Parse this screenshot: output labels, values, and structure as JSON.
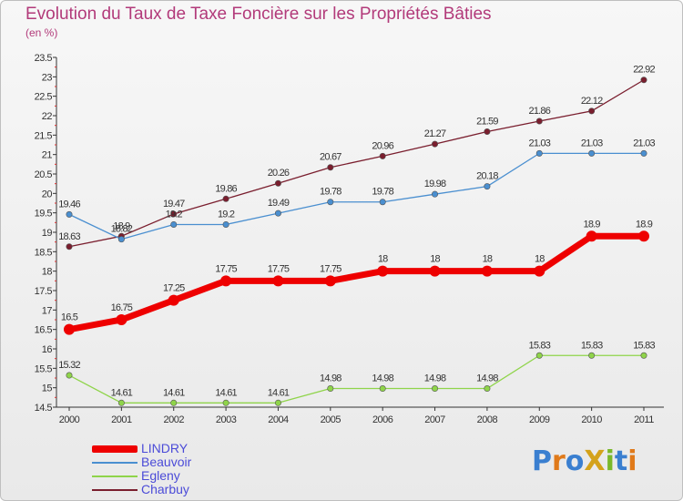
{
  "title": "Evolution du Taux de Taxe Foncière sur les Propriétés Bâties",
  "unit": "(en %)",
  "logo": "ProXiti",
  "chart_data": {
    "type": "line",
    "x": [
      "2000",
      "2001",
      "2002",
      "2003",
      "2004",
      "2005",
      "2006",
      "2007",
      "2008",
      "2009",
      "2010",
      "2011"
    ],
    "y_ticks": [
      "14.5",
      "15",
      "15.5",
      "16",
      "16.5",
      "17",
      "17.5",
      "18",
      "18.5",
      "19",
      "19.5",
      "20",
      "20.5",
      "21",
      "21.5",
      "22",
      "22.5",
      "23",
      "23.5"
    ],
    "ylim": [
      14.5,
      23.5
    ],
    "grid": false,
    "legend_position": "bottom-left",
    "series": [
      {
        "name": "LINDRY",
        "color": "#ee0000",
        "values": [
          16.5,
          16.75,
          17.25,
          17.75,
          17.75,
          17.75,
          18,
          18,
          18,
          18,
          18.9,
          18.9
        ],
        "labels": [
          "16.5",
          "16.75",
          "17.25",
          "17.75",
          "17.75",
          "17.75",
          "18",
          "18",
          "18",
          "18",
          "18.9",
          "18.9"
        ]
      },
      {
        "name": "Beauvoir",
        "color": "#4a8fd0",
        "values": [
          19.46,
          18.82,
          19.2,
          19.2,
          19.49,
          19.78,
          19.78,
          19.98,
          20.18,
          21.03,
          21.03,
          21.03
        ],
        "labels": [
          "19.46",
          "18.82",
          "19.2",
          "19.2",
          "19.49",
          "19.78",
          "19.78",
          "19.98",
          "20.18",
          "21.03",
          "21.03",
          "21.03"
        ]
      },
      {
        "name": "Egleny",
        "color": "#8fd44a",
        "values": [
          15.32,
          14.61,
          14.61,
          14.61,
          14.61,
          14.98,
          14.98,
          14.98,
          14.98,
          15.83,
          15.83,
          15.83
        ],
        "labels": [
          "15.32",
          "14.61",
          "14.61",
          "14.61",
          "14.61",
          "14.98",
          "14.98",
          "14.98",
          "14.98",
          "15.83",
          "15.83",
          "15.83"
        ]
      },
      {
        "name": "Charbuy",
        "color": "#7a1e2e",
        "values": [
          18.63,
          18.9,
          19.47,
          19.86,
          20.26,
          20.67,
          20.96,
          21.27,
          21.59,
          21.86,
          22.12,
          22.92
        ],
        "labels": [
          "18.63",
          "18.9",
          "19.47",
          "19.86",
          "20.26",
          "20.67",
          "20.96",
          "21.27",
          "21.59",
          "21.86",
          "22.12",
          "22.92"
        ]
      }
    ]
  }
}
